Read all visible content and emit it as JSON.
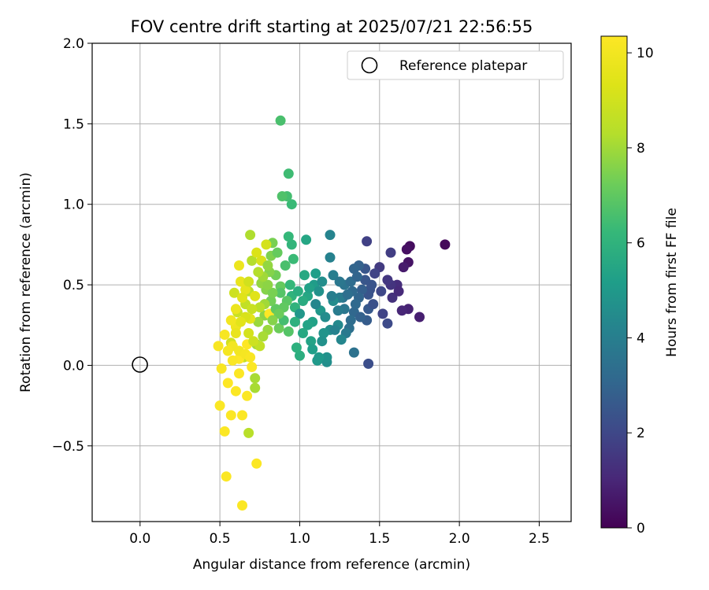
{
  "chart_data": {
    "type": "scatter",
    "title": "FOV centre drift starting at 2025/07/21 22:56:55",
    "xlabel": "Angular distance from reference (arcmin)",
    "ylabel": "Rotation from reference (arcmin)",
    "xlim": [
      -0.3,
      2.7
    ],
    "ylim": [
      -0.97,
      2.0
    ],
    "xticks": [
      "0.0",
      "0.5",
      "1.0",
      "1.5",
      "2.0",
      "2.5"
    ],
    "xtick_values": [
      0.0,
      0.5,
      1.0,
      1.5,
      2.0,
      2.5
    ],
    "yticks": [
      "−0.5",
      "0.0",
      "0.5",
      "1.0",
      "1.5",
      "2.0"
    ],
    "ytick_values": [
      -0.5,
      0.0,
      0.5,
      1.0,
      1.5,
      2.0
    ],
    "grid": true,
    "legend": {
      "placement": "upper right",
      "entries": [
        {
          "label": "Reference platepar",
          "marker": "open-circle"
        }
      ]
    },
    "reference_point": {
      "x": 0.0,
      "y": 0.0
    },
    "colorbar": {
      "label": "Hours from first FF file",
      "range": [
        0,
        10.35
      ],
      "ticks": [
        "0",
        "2",
        "4",
        "6",
        "8",
        "10"
      ],
      "tick_values": [
        0,
        2,
        4,
        6,
        8,
        10
      ],
      "colormap": "viridis"
    },
    "series": [
      {
        "points": [
          [
            1.91,
            0.75,
            0.2
          ],
          [
            1.69,
            0.74,
            0.3
          ],
          [
            1.67,
            0.72,
            0.4
          ],
          [
            1.68,
            0.64,
            0.5
          ],
          [
            1.65,
            0.61,
            0.7
          ],
          [
            1.75,
            0.3,
            0.8
          ],
          [
            1.68,
            0.35,
            0.9
          ],
          [
            1.64,
            0.34,
            1.0
          ],
          [
            1.61,
            0.5,
            1.2
          ],
          [
            1.57,
            0.5,
            1.4
          ],
          [
            1.55,
            0.53,
            1.5
          ],
          [
            1.5,
            0.61,
            1.6
          ],
          [
            1.57,
            0.7,
            1.7
          ],
          [
            1.42,
            0.77,
            1.8
          ],
          [
            1.47,
            0.57,
            1.9
          ],
          [
            1.51,
            0.46,
            2.0
          ],
          [
            1.55,
            0.26,
            2.1
          ],
          [
            1.43,
            0.01,
            2.2
          ],
          [
            1.44,
            0.47,
            2.3
          ],
          [
            1.43,
            0.44,
            2.4
          ],
          [
            1.41,
            0.53,
            2.5
          ],
          [
            1.41,
            0.6,
            2.5
          ],
          [
            1.43,
            0.35,
            2.6
          ],
          [
            1.42,
            0.28,
            2.7
          ],
          [
            1.39,
            0.47,
            2.8
          ],
          [
            1.37,
            0.62,
            2.9
          ],
          [
            1.37,
            0.42,
            3.0
          ],
          [
            1.34,
            0.6,
            3.0
          ],
          [
            1.34,
            0.33,
            3.1
          ],
          [
            1.33,
            0.46,
            3.2
          ],
          [
            1.32,
            0.28,
            3.3
          ],
          [
            1.31,
            0.23,
            3.4
          ],
          [
            1.34,
            0.08,
            3.5
          ],
          [
            1.27,
            0.42,
            3.6
          ],
          [
            1.28,
            0.35,
            3.7
          ],
          [
            1.29,
            0.2,
            3.8
          ],
          [
            1.25,
            0.42,
            3.9
          ],
          [
            1.21,
            0.56,
            4.0
          ],
          [
            1.19,
            0.67,
            4.1
          ],
          [
            1.19,
            0.81,
            4.2
          ],
          [
            1.26,
            0.16,
            4.3
          ],
          [
            1.24,
            0.25,
            4.4
          ],
          [
            1.21,
            0.4,
            4.5
          ],
          [
            1.19,
            0.22,
            4.6
          ],
          [
            1.17,
            0.02,
            4.6
          ],
          [
            1.17,
            0.05,
            4.7
          ],
          [
            1.15,
            0.2,
            4.8
          ],
          [
            1.13,
            0.34,
            4.9
          ],
          [
            1.12,
            0.05,
            5.0
          ],
          [
            1.11,
            0.03,
            5.0
          ],
          [
            1.09,
            0.5,
            5.1
          ],
          [
            1.1,
            0.57,
            5.2
          ],
          [
            1.08,
            0.27,
            5.3
          ],
          [
            1.07,
            0.15,
            5.4
          ],
          [
            1.05,
            0.43,
            5.5
          ],
          [
            1.04,
            0.78,
            5.5
          ],
          [
            1.03,
            0.56,
            5.6
          ],
          [
            1.02,
            0.4,
            5.7
          ],
          [
            1.0,
            0.06,
            5.8
          ],
          [
            0.98,
            0.11,
            5.9
          ],
          [
            0.97,
            0.36,
            6.0
          ],
          [
            0.95,
            0.43,
            6.0
          ],
          [
            0.95,
            0.75,
            6.1
          ],
          [
            0.93,
            0.8,
            6.2
          ],
          [
            0.95,
            1.0,
            6.3
          ],
          [
            0.93,
            1.19,
            6.4
          ],
          [
            0.92,
            1.05,
            6.5
          ],
          [
            0.88,
            1.52,
            6.6
          ],
          [
            0.89,
            1.05,
            6.7
          ],
          [
            0.93,
            0.21,
            6.8
          ],
          [
            0.92,
            0.4,
            6.9
          ],
          [
            0.9,
            0.36,
            7.0
          ],
          [
            0.88,
            0.49,
            7.1
          ],
          [
            0.87,
            0.23,
            7.2
          ],
          [
            0.85,
            0.56,
            7.3
          ],
          [
            0.83,
            0.76,
            7.4
          ],
          [
            0.82,
            0.68,
            7.5
          ],
          [
            0.81,
            0.58,
            7.6
          ],
          [
            0.79,
            0.47,
            7.6
          ],
          [
            0.78,
            0.31,
            7.7
          ],
          [
            0.76,
            0.51,
            7.8
          ],
          [
            0.74,
            0.27,
            7.9
          ],
          [
            0.73,
            0.13,
            8.0
          ],
          [
            0.72,
            -0.08,
            8.1
          ],
          [
            0.72,
            -0.14,
            8.1
          ],
          [
            0.69,
            0.81,
            8.2
          ],
          [
            0.7,
            0.65,
            8.3
          ],
          [
            0.68,
            -0.42,
            8.4
          ],
          [
            0.68,
            0.46,
            8.5
          ],
          [
            0.66,
            0.38,
            8.6
          ],
          [
            0.65,
            0.05,
            8.7
          ],
          [
            0.61,
            0.33,
            8.8
          ],
          [
            0.59,
            0.45,
            8.9
          ],
          [
            0.57,
            0.14,
            9.0
          ],
          [
            0.79,
            0.75,
            9.1
          ],
          [
            0.76,
            0.65,
            9.2
          ],
          [
            0.73,
            0.7,
            9.3
          ],
          [
            0.72,
            0.43,
            9.4
          ],
          [
            0.69,
            0.29,
            9.5
          ],
          [
            0.66,
            0.47,
            9.6
          ],
          [
            0.63,
            0.52,
            9.7
          ],
          [
            0.62,
            0.62,
            9.8
          ],
          [
            0.6,
            0.24,
            9.9
          ],
          [
            0.58,
            0.12,
            10.0
          ],
          [
            0.55,
            0.09,
            10.1
          ],
          [
            0.53,
            0.19,
            10.15
          ],
          [
            0.51,
            -0.02,
            10.2
          ],
          [
            0.49,
            0.12,
            10.2
          ],
          [
            0.5,
            -0.25,
            10.25
          ],
          [
            0.53,
            -0.41,
            10.3
          ],
          [
            0.54,
            -0.69,
            10.3
          ],
          [
            0.64,
            -0.87,
            10.3
          ],
          [
            0.73,
            -0.61,
            10.3
          ],
          [
            0.6,
            -0.16,
            10.3
          ],
          [
            0.64,
            -0.31,
            10.3
          ],
          [
            0.7,
            -0.01,
            10.3
          ],
          [
            0.62,
            0.04,
            10.35
          ],
          [
            0.55,
            -0.11,
            10.35
          ],
          [
            0.67,
            0.13,
            10.35
          ],
          [
            0.81,
            0.32,
            10.35
          ],
          [
            1.0,
            0.32,
            4.9
          ],
          [
            1.1,
            0.38,
            4.3
          ],
          [
            1.2,
            0.43,
            4.0
          ],
          [
            1.3,
            0.44,
            3.4
          ],
          [
            1.35,
            0.38,
            3.2
          ],
          [
            1.05,
            0.25,
            5.4
          ],
          [
            0.97,
            0.27,
            5.9
          ],
          [
            0.9,
            0.28,
            6.5
          ],
          [
            0.85,
            0.35,
            7.0
          ],
          [
            0.82,
            0.4,
            7.3
          ],
          [
            0.78,
            0.38,
            8.0
          ],
          [
            0.75,
            0.36,
            8.4
          ],
          [
            0.7,
            0.35,
            8.8
          ],
          [
            0.66,
            0.3,
            9.2
          ],
          [
            0.63,
            0.27,
            9.5
          ],
          [
            0.6,
            0.2,
            9.7
          ],
          [
            0.62,
            0.09,
            10.0
          ],
          [
            0.66,
            0.07,
            10.1
          ],
          [
            0.69,
            0.05,
            10.2
          ],
          [
            1.12,
            0.46,
            4.7
          ],
          [
            1.16,
            0.3,
            4.5
          ],
          [
            1.24,
            0.34,
            3.9
          ],
          [
            1.28,
            0.5,
            3.6
          ],
          [
            1.32,
            0.52,
            3.3
          ],
          [
            1.38,
            0.3,
            2.9
          ],
          [
            1.46,
            0.38,
            2.3
          ],
          [
            1.52,
            0.32,
            1.9
          ],
          [
            1.58,
            0.42,
            1.3
          ],
          [
            1.62,
            0.46,
            1.1
          ],
          [
            1.45,
            0.5,
            2.4
          ],
          [
            1.36,
            0.55,
            3.0
          ],
          [
            1.25,
            0.52,
            3.7
          ],
          [
            1.14,
            0.52,
            4.6
          ],
          [
            1.06,
            0.48,
            5.3
          ],
          [
            0.99,
            0.46,
            5.8
          ],
          [
            0.94,
            0.5,
            6.2
          ],
          [
            0.88,
            0.45,
            6.8
          ],
          [
            0.83,
            0.45,
            7.4
          ],
          [
            0.8,
            0.5,
            7.7
          ],
          [
            0.77,
            0.55,
            8.0
          ],
          [
            0.74,
            0.58,
            8.3
          ],
          [
            0.68,
            0.52,
            9.0
          ],
          [
            0.64,
            0.42,
            9.4
          ],
          [
            0.6,
            0.35,
            9.8
          ],
          [
            0.57,
            0.28,
            10.0
          ],
          [
            0.87,
            0.32,
            7.2
          ],
          [
            0.83,
            0.28,
            7.6
          ],
          [
            0.8,
            0.22,
            7.9
          ],
          [
            0.77,
            0.18,
            8.1
          ],
          [
            0.75,
            0.12,
            8.6
          ],
          [
            0.71,
            0.15,
            8.9
          ],
          [
            0.68,
            0.2,
            9.1
          ],
          [
            0.96,
            0.66,
            6.3
          ],
          [
            0.91,
            0.62,
            6.6
          ],
          [
            0.86,
            0.7,
            7.1
          ],
          [
            0.8,
            0.62,
            7.8
          ],
          [
            1.02,
            0.2,
            5.6
          ],
          [
            1.08,
            0.1,
            5.2
          ],
          [
            1.14,
            0.15,
            4.7
          ],
          [
            1.22,
            0.22,
            4.1
          ],
          [
            0.58,
            0.03,
            10.25
          ],
          [
            0.62,
            -0.05,
            10.3
          ],
          [
            0.67,
            -0.19,
            10.3
          ],
          [
            0.57,
            -0.31,
            10.3
          ]
        ]
      }
    ]
  }
}
